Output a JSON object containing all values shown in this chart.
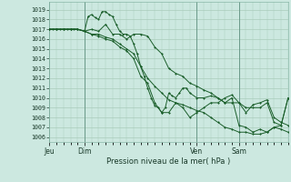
{
  "xlabel_bottom": "Pression niveau de la mer( hPa )",
  "bg_color": "#cce8e0",
  "grid_color": "#aaccbb",
  "line_color": "#1a5e2a",
  "marker_color": "#1a5e2a",
  "ylim": [
    1005.5,
    1019.8
  ],
  "yticks": [
    1006,
    1007,
    1008,
    1009,
    1010,
    1011,
    1012,
    1013,
    1014,
    1015,
    1016,
    1017,
    1018,
    1019
  ],
  "xtick_labels": [
    "Jeu",
    "Dim",
    "Ven",
    "Sam"
  ],
  "xtick_positions": [
    0,
    20,
    84,
    108
  ],
  "total_steps": 136,
  "series": [
    {
      "x": [
        0,
        2,
        4,
        6,
        8,
        10,
        12,
        14,
        16,
        20,
        22,
        24,
        26,
        28,
        30,
        32,
        34,
        36,
        38,
        40,
        42,
        44,
        46,
        48,
        50,
        52,
        54,
        56,
        58,
        60,
        62,
        64,
        66,
        68,
        70,
        72,
        74,
        76,
        78,
        80,
        84,
        88,
        92,
        96,
        100,
        104,
        108,
        112,
        116,
        120,
        124,
        128,
        132,
        136
      ],
      "y": [
        1017,
        1017,
        1017,
        1017,
        1017,
        1017,
        1017,
        1017,
        1017,
        1016.8,
        1018.3,
        1018.5,
        1018.2,
        1018.0,
        1018.8,
        1018.8,
        1018.5,
        1018.3,
        1017.5,
        1016.8,
        1016.5,
        1016.5,
        1016.3,
        1015.5,
        1014.5,
        1013.2,
        1012.2,
        1011.0,
        1010.0,
        1009.2,
        1009.0,
        1008.5,
        1009.0,
        1010.5,
        1010.2,
        1010.0,
        1010.5,
        1011.0,
        1011.0,
        1010.5,
        1010.0,
        1010.0,
        1010.2,
        1010.0,
        1009.5,
        1010.0,
        1007.2,
        1007.0,
        1006.5,
        1006.8,
        1006.5,
        1007.0,
        1007.2,
        1010.0
      ]
    },
    {
      "x": [
        0,
        4,
        8,
        12,
        16,
        20,
        24,
        28,
        32,
        36,
        40,
        44,
        48,
        52,
        56,
        60,
        64,
        68,
        72,
        76,
        80,
        84,
        88,
        92,
        96,
        100,
        104,
        108,
        112,
        116,
        120,
        124,
        128,
        132,
        136
      ],
      "y": [
        1017,
        1017,
        1017,
        1017,
        1017,
        1016.8,
        1017.0,
        1016.8,
        1017.5,
        1016.5,
        1016.5,
        1016.0,
        1016.5,
        1016.5,
        1016.3,
        1015.2,
        1014.5,
        1013.0,
        1012.5,
        1012.2,
        1011.5,
        1011.2,
        1010.8,
        1010.5,
        1010.0,
        1009.5,
        1009.5,
        1009.5,
        1009.0,
        1009.0,
        1009.0,
        1009.5,
        1007.5,
        1007.2,
        1010.0
      ]
    },
    {
      "x": [
        0,
        4,
        8,
        12,
        16,
        20,
        24,
        28,
        32,
        36,
        40,
        44,
        48,
        52,
        56,
        60,
        64,
        68,
        72,
        76,
        80,
        84,
        88,
        92,
        96,
        100,
        104,
        108,
        112,
        116,
        120,
        124,
        128,
        132,
        136
      ],
      "y": [
        1017,
        1017,
        1017,
        1017,
        1017,
        1016.8,
        1016.5,
        1016.5,
        1016.2,
        1016.0,
        1015.5,
        1015.0,
        1014.5,
        1013.2,
        1012.0,
        1011.2,
        1010.5,
        1009.8,
        1009.5,
        1009.3,
        1009.0,
        1008.7,
        1008.5,
        1008.0,
        1007.5,
        1007.0,
        1006.8,
        1006.5,
        1006.5,
        1006.3,
        1006.3,
        1006.5,
        1007.0,
        1006.8,
        1006.5
      ]
    },
    {
      "x": [
        0,
        4,
        8,
        12,
        16,
        20,
        24,
        28,
        32,
        36,
        40,
        44,
        48,
        52,
        56,
        60,
        64,
        68,
        72,
        76,
        80,
        84,
        88,
        92,
        96,
        100,
        104,
        108,
        112,
        116,
        120,
        124,
        128,
        132,
        136
      ],
      "y": [
        1017,
        1017,
        1017,
        1017,
        1017,
        1016.8,
        1016.5,
        1016.3,
        1016.0,
        1015.8,
        1015.2,
        1014.8,
        1014.0,
        1012.2,
        1011.5,
        1009.5,
        1008.5,
        1008.5,
        1009.5,
        1009.0,
        1008.0,
        1008.5,
        1009.0,
        1009.5,
        1009.5,
        1010.0,
        1010.3,
        1009.5,
        1008.5,
        1009.3,
        1009.5,
        1009.8,
        1008.0,
        1007.5,
        1007.2
      ]
    }
  ]
}
